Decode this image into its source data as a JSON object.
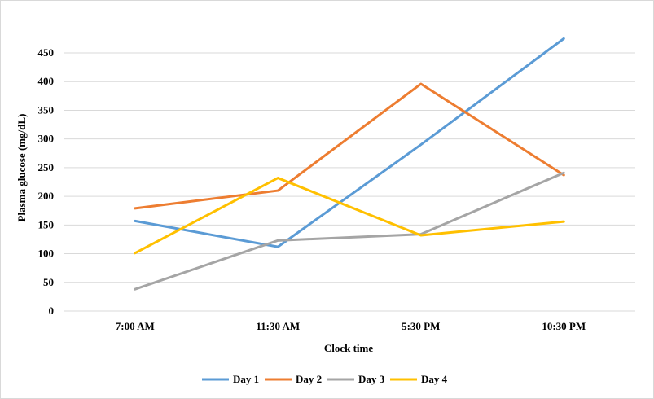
{
  "chart_data": {
    "type": "line",
    "title": "",
    "xlabel": "Clock time",
    "ylabel": "Plasma glucose (mg/dL)",
    "categories": [
      "7:00 AM",
      "11:30 AM",
      "5:30 PM",
      "10:30 PM"
    ],
    "ylim": [
      0,
      450
    ],
    "yticks": [
      0,
      50,
      100,
      150,
      200,
      250,
      300,
      350,
      400,
      450
    ],
    "grid": true,
    "legend_position": "bottom",
    "series": [
      {
        "name": "Day 1",
        "color": "#5b9bd5",
        "values": [
          157,
          112,
          290,
          475
        ]
      },
      {
        "name": "Day 2",
        "color": "#ed7d31",
        "values": [
          179,
          210,
          396,
          237
        ]
      },
      {
        "name": "Day 3",
        "color": "#a5a5a5",
        "values": [
          38,
          123,
          134,
          241
        ]
      },
      {
        "name": "Day 4",
        "color": "#ffc000",
        "values": [
          101,
          232,
          132,
          156
        ]
      }
    ]
  }
}
